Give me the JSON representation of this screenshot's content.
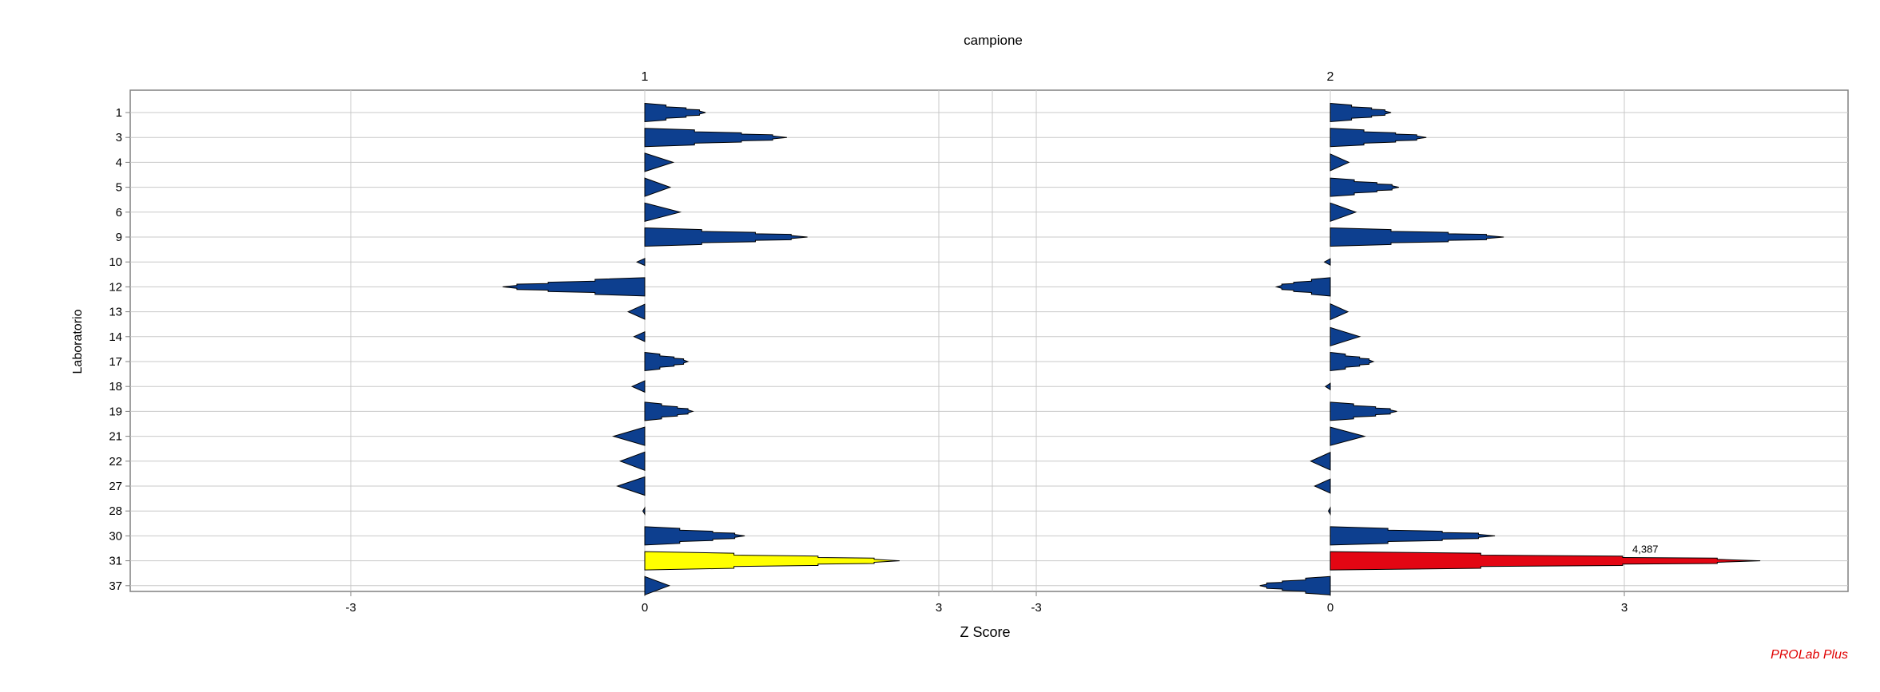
{
  "chart_data": {
    "type": "bar",
    "title": "campione",
    "xlabel": "Z Score",
    "ylabel": "Laboratorio",
    "categories": [
      "1",
      "3",
      "4",
      "5",
      "6",
      "9",
      "10",
      "12",
      "13",
      "14",
      "17",
      "18",
      "19",
      "21",
      "22",
      "27",
      "28",
      "30",
      "31",
      "37"
    ],
    "panels": [
      {
        "name": "1",
        "xlim": [
          -4.46,
          3.0
        ],
        "xticks": [
          "-3",
          "0",
          "3"
        ],
        "values": [
          0.62,
          1.45,
          0.29,
          0.26,
          0.36,
          1.66,
          -0.08,
          -1.45,
          -0.17,
          -0.11,
          0.44,
          -0.13,
          0.49,
          -0.32,
          -0.25,
          -0.28,
          -0.02,
          1.02,
          2.6,
          0.25
        ]
      },
      {
        "name": "2",
        "xlim": [
          -3.0,
          5.3
        ],
        "xticks": [
          "-3",
          "0",
          "3"
        ],
        "values": [
          0.62,
          0.98,
          0.19,
          0.7,
          0.26,
          1.77,
          -0.06,
          -0.55,
          0.18,
          0.3,
          0.44,
          -0.05,
          0.68,
          0.35,
          -0.2,
          -0.16,
          -0.02,
          1.68,
          4.387,
          -0.72
        ]
      }
    ],
    "annotations": [
      {
        "panel": "2",
        "category": "31",
        "text": "4,387"
      }
    ],
    "colors": {
      "normal": "#0d3f8f",
      "warning": "#ffff00",
      "alarm": "#e30613",
      "grid": "#c8c8c8",
      "frame": "#808080",
      "outline": "#000000"
    },
    "status": {
      "1": {
        "31": "warning"
      },
      "2": {
        "31": "alarm"
      }
    },
    "grid": true
  },
  "footer": {
    "brand": "PROLab Plus"
  }
}
